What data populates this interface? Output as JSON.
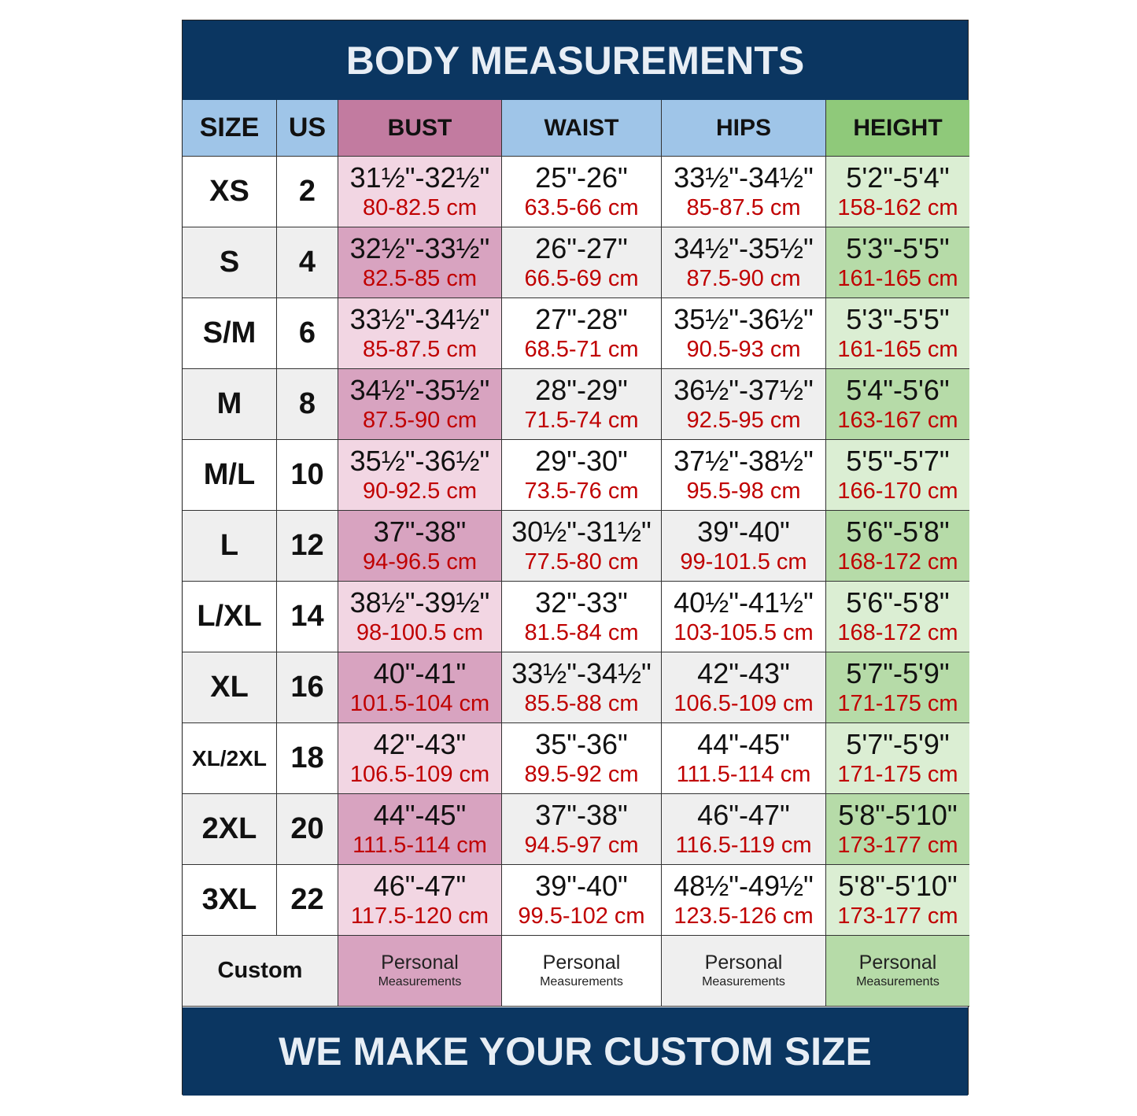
{
  "title": "BODY MEASUREMENTS",
  "footer": "WE MAKE YOUR CUSTOM SIZE",
  "headers": [
    "SIZE",
    "US",
    "BUST",
    "WAIST",
    "HIPS",
    "HEIGHT"
  ],
  "colors": {
    "navy": "#0b3661",
    "header_blue": "#9fc5e8",
    "bust_header": "#c27ba0",
    "height_header": "#8fc97a",
    "bust_light": "#f2d6e3",
    "bust_dark": "#d8a3c0",
    "gray": "#efefef",
    "height_light": "#dbeed3",
    "height_dark": "#b6dba8",
    "cm_red": "#c00000"
  },
  "rows": [
    {
      "size": "XS",
      "us": "2",
      "bust": [
        "31½\"-32½\"",
        "80-82.5 cm"
      ],
      "waist": [
        "25\"-26\"",
        "63.5-66 cm"
      ],
      "hips": [
        "33½\"-34½\"",
        "85-87.5 cm"
      ],
      "height": [
        "5'2\"-5'4\"",
        "158-162 cm"
      ]
    },
    {
      "size": "S",
      "us": "4",
      "bust": [
        "32½\"-33½\"",
        "82.5-85 cm"
      ],
      "waist": [
        "26\"-27\"",
        "66.5-69 cm"
      ],
      "hips": [
        "34½\"-35½\"",
        "87.5-90 cm"
      ],
      "height": [
        "5'3\"-5'5\"",
        "161-165 cm"
      ]
    },
    {
      "size": "S/M",
      "us": "6",
      "bust": [
        "33½\"-34½\"",
        "85-87.5 cm"
      ],
      "waist": [
        "27\"-28\"",
        "68.5-71 cm"
      ],
      "hips": [
        "35½\"-36½\"",
        "90.5-93 cm"
      ],
      "height": [
        "5'3\"-5'5\"",
        "161-165 cm"
      ]
    },
    {
      "size": "M",
      "us": "8",
      "bust": [
        "34½\"-35½\"",
        "87.5-90 cm"
      ],
      "waist": [
        "28\"-29\"",
        "71.5-74 cm"
      ],
      "hips": [
        "36½\"-37½\"",
        "92.5-95 cm"
      ],
      "height": [
        "5'4\"-5'6\"",
        "163-167 cm"
      ]
    },
    {
      "size": "M/L",
      "us": "10",
      "bust": [
        "35½\"-36½\"",
        "90-92.5 cm"
      ],
      "waist": [
        "29\"-30\"",
        "73.5-76 cm"
      ],
      "hips": [
        "37½\"-38½\"",
        "95.5-98 cm"
      ],
      "height": [
        "5'5\"-5'7\"",
        "166-170 cm"
      ]
    },
    {
      "size": "L",
      "us": "12",
      "bust": [
        "37\"-38\"",
        "94-96.5 cm"
      ],
      "waist": [
        "30½\"-31½\"",
        "77.5-80 cm"
      ],
      "hips": [
        "39\"-40\"",
        "99-101.5 cm"
      ],
      "height": [
        "5'6\"-5'8\"",
        "168-172 cm"
      ]
    },
    {
      "size": "L/XL",
      "us": "14",
      "bust": [
        "38½\"-39½\"",
        "98-100.5 cm"
      ],
      "waist": [
        "32\"-33\"",
        "81.5-84 cm"
      ],
      "hips": [
        "40½\"-41½\"",
        "103-105.5 cm"
      ],
      "height": [
        "5'6\"-5'8\"",
        "168-172 cm"
      ]
    },
    {
      "size": "XL",
      "us": "16",
      "bust": [
        "40\"-41\"",
        "101.5-104 cm"
      ],
      "waist": [
        "33½\"-34½\"",
        "85.5-88 cm"
      ],
      "hips": [
        "42\"-43\"",
        "106.5-109 cm"
      ],
      "height": [
        "5'7\"-5'9\"",
        "171-175 cm"
      ]
    },
    {
      "size": "XL/2XL",
      "us": "18",
      "bust": [
        "42\"-43\"",
        "106.5-109 cm"
      ],
      "waist": [
        "35\"-36\"",
        "89.5-92 cm"
      ],
      "hips": [
        "44\"-45\"",
        "111.5-114 cm"
      ],
      "height": [
        "5'7\"-5'9\"",
        "171-175 cm"
      ]
    },
    {
      "size": "2XL",
      "us": "20",
      "bust": [
        "44\"-45\"",
        "111.5-114 cm"
      ],
      "waist": [
        "37\"-38\"",
        "94.5-97 cm"
      ],
      "hips": [
        "46\"-47\"",
        "116.5-119 cm"
      ],
      "height": [
        "5'8\"-5'10\"",
        "173-177 cm"
      ]
    },
    {
      "size": "3XL",
      "us": "22",
      "bust": [
        "46\"-47\"",
        "117.5-120 cm"
      ],
      "waist": [
        "39\"-40\"",
        "99.5-102 cm"
      ],
      "hips": [
        "48½\"-49½\"",
        "123.5-126 cm"
      ],
      "height": [
        "5'8\"-5'10\"",
        "173-177 cm"
      ]
    }
  ],
  "custom": {
    "label": "Custom",
    "line1": "Personal",
    "line2": "Measurements"
  }
}
